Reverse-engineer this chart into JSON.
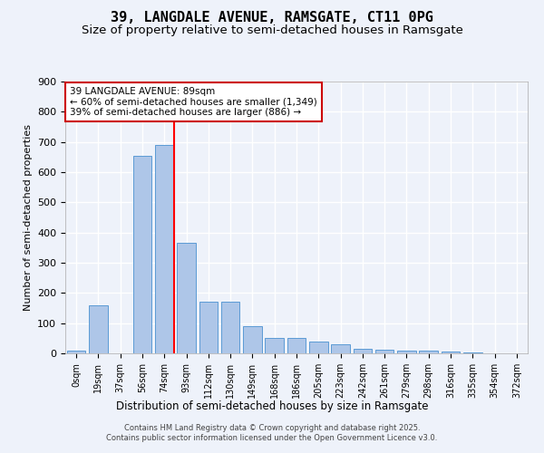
{
  "title": "39, LANGDALE AVENUE, RAMSGATE, CT11 0PG",
  "subtitle": "Size of property relative to semi-detached houses in Ramsgate",
  "xlabel": "Distribution of semi-detached houses by size in Ramsgate",
  "ylabel": "Number of semi-detached properties",
  "categories": [
    "0sqm",
    "19sqm",
    "37sqm",
    "56sqm",
    "74sqm",
    "93sqm",
    "112sqm",
    "130sqm",
    "149sqm",
    "168sqm",
    "186sqm",
    "205sqm",
    "223sqm",
    "242sqm",
    "261sqm",
    "279sqm",
    "298sqm",
    "316sqm",
    "335sqm",
    "354sqm",
    "372sqm"
  ],
  "values": [
    8,
    160,
    0,
    655,
    690,
    365,
    170,
    170,
    90,
    50,
    50,
    38,
    30,
    15,
    12,
    10,
    8,
    5,
    3,
    1,
    0
  ],
  "bar_color": "#aec6e8",
  "bar_edge_color": "#5b9bd5",
  "red_line_bar_index": 4,
  "red_line_label": "39 LANGDALE AVENUE: 89sqm",
  "annotation_line1": "← 60% of semi-detached houses are smaller (1,349)",
  "annotation_line2": "39% of semi-detached houses are larger (886) →",
  "ylim": [
    0,
    900
  ],
  "yticks": [
    0,
    100,
    200,
    300,
    400,
    500,
    600,
    700,
    800,
    900
  ],
  "bg_color": "#eef2fa",
  "grid_color": "#ffffff",
  "footer_line1": "Contains HM Land Registry data © Crown copyright and database right 2025.",
  "footer_line2": "Contains public sector information licensed under the Open Government Licence v3.0.",
  "title_fontsize": 11,
  "subtitle_fontsize": 9.5
}
